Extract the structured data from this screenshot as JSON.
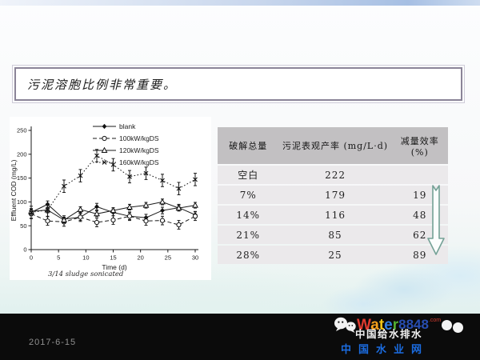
{
  "slide": {
    "title": "污泥溶胞比例非常重要。",
    "footer": {
      "date": "2017-6-15"
    },
    "watermark": {
      "brand_letters": [
        {
          "ch": "W",
          "color": "#e03a2f"
        },
        {
          "ch": "a",
          "color": "#f6a01a"
        },
        {
          "ch": "t",
          "color": "#f3c613"
        },
        {
          "ch": "e",
          "color": "#2f7de1"
        },
        {
          "ch": "r",
          "color": "#53b032"
        }
      ],
      "brand_number": "8848",
      "brand_number_color": "#2b55c4",
      "brand_tld": ".com",
      "line_white": "中国给水排水",
      "line_blue": "中国水业网"
    }
  },
  "table": {
    "headers": [
      "破解总量",
      "污泥表观产率 (mg/L·d)",
      "减量效率\n(%)"
    ],
    "rows": [
      [
        "空白",
        "222",
        ""
      ],
      [
        "7%",
        "179",
        "19"
      ],
      [
        "14%",
        "116",
        "48"
      ],
      [
        "21%",
        "85",
        "62"
      ],
      [
        "28%",
        "25",
        "89"
      ]
    ]
  },
  "chart_data": {
    "type": "line",
    "title": "",
    "xlabel": "Time (d)",
    "ylabel": "Effluent COD (mg/L)",
    "caption": "3/14 sludge sonicated",
    "xlim": [
      0,
      30
    ],
    "ylim": [
      0,
      250
    ],
    "xticks": [
      0,
      5,
      10,
      15,
      20,
      25,
      30
    ],
    "yticks": [
      0,
      50,
      100,
      150,
      200,
      250
    ],
    "legend_position": "top-right",
    "grid": false,
    "x": [
      0,
      3,
      6,
      9,
      12,
      15,
      18,
      21,
      24,
      27,
      30
    ],
    "series": [
      {
        "name": "blank",
        "marker": "diamond-filled",
        "line": "solid",
        "err": 7,
        "values": [
          78,
          95,
          64,
          68,
          90,
          78,
          70,
          67,
          82,
          88,
          73
        ]
      },
      {
        "name": "100kW/kgDS",
        "marker": "circle-open",
        "line": "dashed",
        "err": 9,
        "values": [
          75,
          60,
          58,
          68,
          57,
          62,
          70,
          60,
          61,
          52,
          70
        ]
      },
      {
        "name": "120kW/kgDS",
        "marker": "triangle-open",
        "line": "solid",
        "err": 6,
        "values": [
          80,
          83,
          62,
          84,
          75,
          82,
          89,
          93,
          100,
          87,
          93
        ]
      },
      {
        "name": "160kW/kgDS",
        "marker": "x",
        "line": "dotted",
        "err": 13,
        "values": [
          78,
          83,
          133,
          155,
          197,
          178,
          153,
          160,
          145,
          128,
          147
        ]
      }
    ]
  },
  "colors": {
    "arrow_outline": "#74a196",
    "table_header_bg": "#c2c0c2",
    "table_row_bg": "#ebe9eb",
    "footer_bg": "#0b0b0b",
    "title_border": "#8b8498"
  }
}
